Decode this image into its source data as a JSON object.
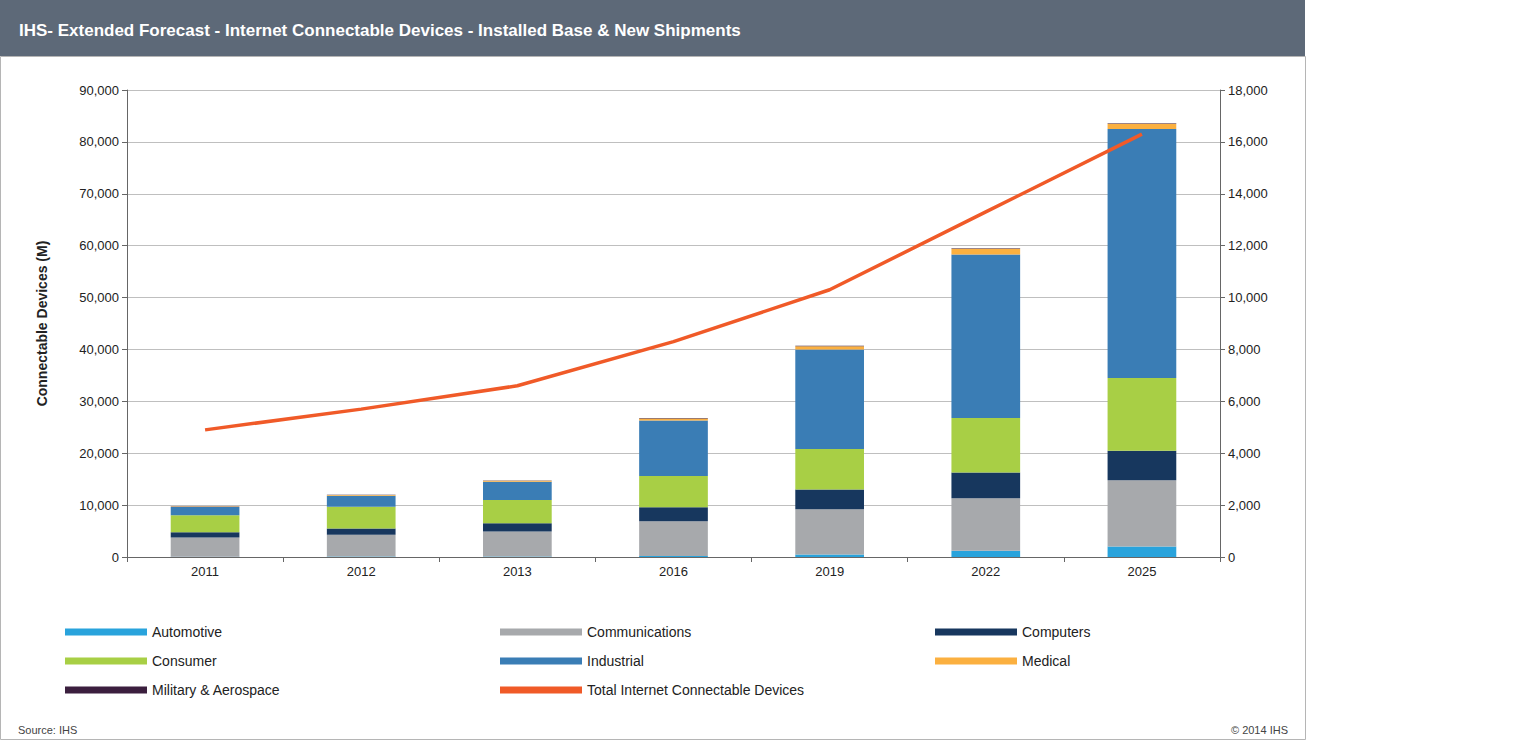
{
  "chart_data": {
    "type": "bar",
    "title": "IHS- Extended Forecast - Internet Connectable Devices - Installed Base & New Shipments",
    "y_label": "Connectable Devices (M)",
    "source": "Source: IHS",
    "copyright": "© 2014 IHS",
    "categories": [
      "2011",
      "2012",
      "2013",
      "2016",
      "2019",
      "2022",
      "2025"
    ],
    "stacked": true,
    "grid": true,
    "legend": "bottom",
    "ylim": [
      0,
      90000
    ],
    "yticks": [
      0,
      {
        "value": 10000,
        "label": "10,000"
      },
      {
        "value": 20000,
        "label": "20,000"
      },
      {
        "value": 30000,
        "label": "30,000"
      },
      {
        "value": 40000,
        "label": "40,000"
      },
      {
        "value": 50000,
        "label": "50,000"
      },
      {
        "value": 60000,
        "label": "60,000"
      },
      {
        "value": 70000,
        "label": "70,000"
      },
      {
        "value": 80000,
        "label": "80,000"
      },
      {
        "value": 90000,
        "label": "90,000"
      }
    ],
    "y2lim": [
      0,
      18000
    ],
    "y2ticks": [
      0,
      {
        "value": 2000,
        "label": "2,000"
      },
      {
        "value": 4000,
        "label": "4,000"
      },
      {
        "value": 6000,
        "label": "6,000"
      },
      {
        "value": 8000,
        "label": "8,000"
      },
      {
        "value": 10000,
        "label": "10,000"
      },
      {
        "value": 12000,
        "label": "12,000"
      },
      {
        "value": 14000,
        "label": "14,000"
      },
      {
        "value": 16000,
        "label": "16,000"
      },
      {
        "value": 18000,
        "label": "18,000"
      }
    ],
    "series": [
      {
        "name": "Automotive",
        "type": "bar",
        "color": "#29a3dc",
        "values": [
          50,
          80,
          100,
          200,
          500,
          1200,
          2000
        ]
      },
      {
        "name": "Communications",
        "type": "bar",
        "color": "#a7a9ac",
        "values": [
          3700,
          4200,
          4800,
          6700,
          8700,
          10100,
          12800
        ]
      },
      {
        "name": "Computers",
        "type": "bar",
        "color": "#17375e",
        "values": [
          1000,
          1200,
          1600,
          2700,
          3800,
          5000,
          5700
        ]
      },
      {
        "name": "Consumer",
        "type": "bar",
        "color": "#a8cf45",
        "values": [
          3300,
          4200,
          4500,
          6000,
          7800,
          10500,
          14000
        ]
      },
      {
        "name": "Industrial",
        "type": "bar",
        "color": "#3a7db5",
        "values": [
          1600,
          2100,
          3500,
          10700,
          19200,
          31500,
          48000
        ]
      },
      {
        "name": "Medical",
        "type": "bar",
        "color": "#fbb040",
        "values": [
          100,
          150,
          200,
          400,
          600,
          1100,
          1000
        ]
      },
      {
        "name": "Military & Aerospace",
        "type": "bar",
        "color": "#3b1f3e",
        "values": [
          50,
          50,
          60,
          80,
          100,
          100,
          100
        ]
      },
      {
        "name": "Total Internet Connectable Devices",
        "type": "line",
        "axis": "y2",
        "color": "#f05a28",
        "line_style": "solid",
        "values": [
          4900,
          5700,
          6600,
          8300,
          10300,
          13300,
          16300
        ]
      }
    ]
  }
}
